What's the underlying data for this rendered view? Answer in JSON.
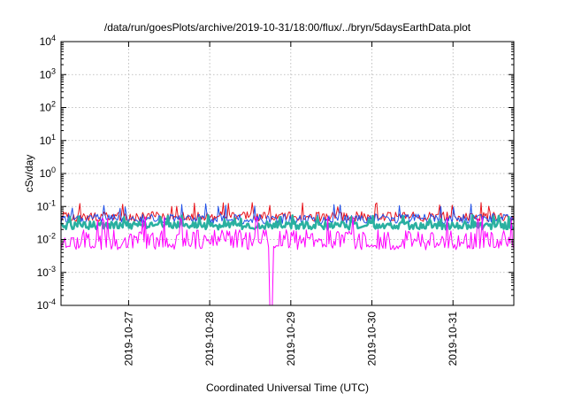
{
  "chart_data": {
    "type": "line",
    "title": "/data/run/goesPlots/archive/2019-10-31/18:00/flux/../bryn/5daysEarthData.plot",
    "xlabel": "Coordinated Universal Time (UTC)",
    "ylabel": "cSv/day",
    "yscale": "log",
    "ylim": [
      0.0001,
      10000
    ],
    "xlim": [
      "2019-10-26T04:00",
      "2019-10-31T18:00"
    ],
    "grid": true,
    "legend": "none",
    "x_ticks": [
      "2019-10-27",
      "2019-10-28",
      "2019-10-29",
      "2019-10-30",
      "2019-10-31"
    ],
    "y_ticks": [
      {
        "value": 0.0001,
        "base": "10",
        "exp": "-4"
      },
      {
        "value": 0.001,
        "base": "10",
        "exp": "-3"
      },
      {
        "value": 0.01,
        "base": "10",
        "exp": "-2"
      },
      {
        "value": 0.1,
        "base": "10",
        "exp": "-1"
      },
      {
        "value": 1,
        "base": "10",
        "exp": "0"
      },
      {
        "value": 10,
        "base": "10",
        "exp": "1"
      },
      {
        "value": 100,
        "base": "10",
        "exp": "2"
      },
      {
        "value": 1000,
        "base": "10",
        "exp": "3"
      },
      {
        "value": 10000,
        "base": "10",
        "exp": "4"
      }
    ],
    "series_style": [
      {
        "color": "#e8141c",
        "width": 1,
        "low": 0.035,
        "high": 0.07,
        "spike": 0.12
      },
      {
        "color": "#2050e8",
        "width": 1,
        "low": 0.03,
        "high": 0.06,
        "spike": 0.11
      },
      {
        "color": "#2ab0a0",
        "width": 2.5,
        "low": 0.02,
        "high": 0.035,
        "spike": 0.05
      },
      {
        "color": "#ff00ff",
        "width": 1,
        "low": 0.006,
        "high": 0.02,
        "spike": 0.045
      }
    ],
    "series": [
      {
        "values_summary": "red band ~0.03–0.1 cSv/day"
      },
      {
        "values_summary": "blue band ~0.02–0.1 cSv/day"
      },
      {
        "values_summary": "teal band ~0.015–0.04 cSv/day"
      },
      {
        "values_summary": "magenta band ~0.005–0.05 cSv/day, dropout to 1e-4 near 2019-10-28 18:00"
      }
    ]
  }
}
